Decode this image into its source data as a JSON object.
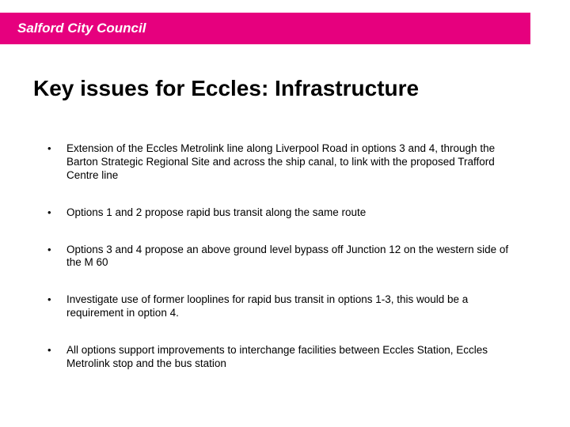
{
  "header": {
    "brand": "Salford City Council",
    "band_color": "#e6007e",
    "text_color": "#ffffff"
  },
  "title": "Key issues for Eccles: Infrastructure",
  "title_fontsize": 28,
  "title_color": "#000000",
  "bullets": [
    "Extension of the Eccles Metrolink line along Liverpool Road in options 3 and 4, through the Barton Strategic Regional Site and across the ship canal, to link with the proposed Trafford Centre line",
    "Options 1 and 2 propose rapid bus transit along the same route",
    "Options 3 and 4 propose an above ground level bypass off Junction 12 on the western side of the M 60",
    "Investigate use of former looplines for rapid bus transit in options 1-3, this would be a requirement in option 4.",
    "All options support improvements to interchange facilities between Eccles Station, Eccles Metrolink stop and the bus station"
  ],
  "bullet_fontsize": 13.5,
  "bullet_color": "#000000",
  "background_color": "#ffffff"
}
